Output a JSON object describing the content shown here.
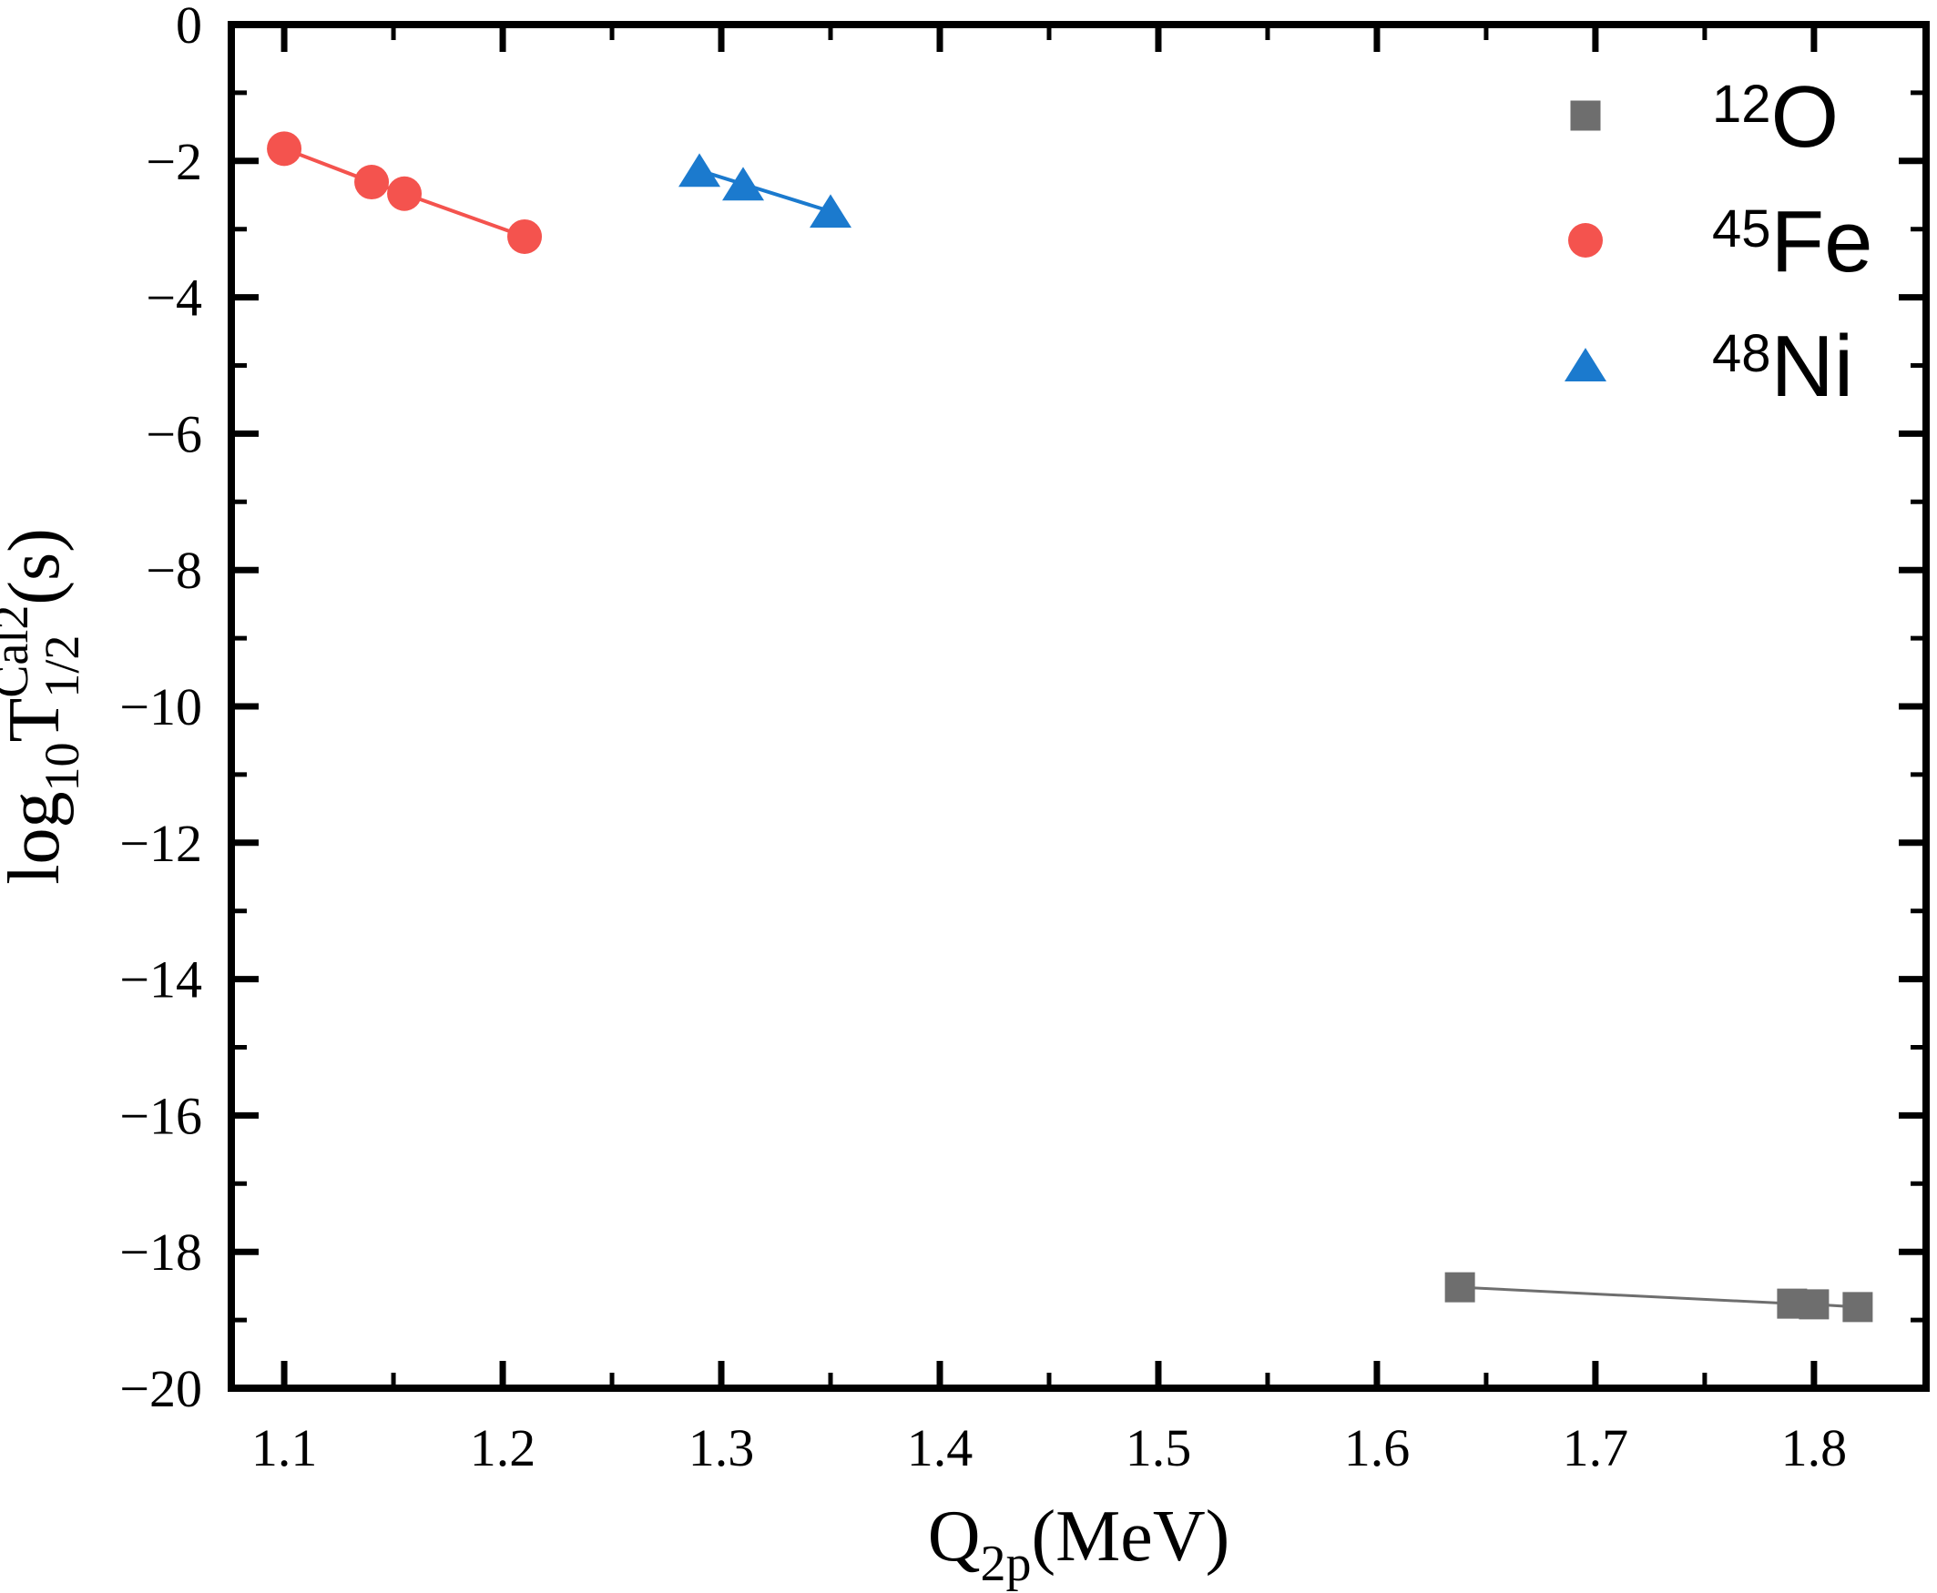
{
  "figure": {
    "background": "#ffffff",
    "axis_color": "#000000"
  },
  "chart_data": {
    "type": "line",
    "title": "",
    "xlabel_tokens": [
      {
        "t": "Q",
        "k": "b"
      },
      {
        "t": "2p",
        "k": "sub"
      },
      {
        "t": "(MeV)",
        "k": "b"
      }
    ],
    "ylabel_tokens": [
      {
        "t": "log",
        "k": "b"
      },
      {
        "t": "10",
        "k": "sub"
      },
      {
        "t": "T",
        "k": "b"
      },
      {
        "t": "Cal2",
        "k": "sup"
      },
      {
        "t": "1/2",
        "k": "substack"
      },
      {
        "t": "(s)",
        "k": "b"
      }
    ],
    "xlim": [
      1.0758,
      1.8513
    ],
    "ylim": [
      -20,
      0
    ],
    "grid": false,
    "legend_position": "top-right",
    "x_ticks": {
      "major": [
        {
          "v": 1.1,
          "label": "1.1"
        },
        {
          "v": 1.2,
          "label": "1.2"
        },
        {
          "v": 1.3,
          "label": "1.3"
        },
        {
          "v": 1.4,
          "label": "1.4"
        },
        {
          "v": 1.5,
          "label": "1.5"
        },
        {
          "v": 1.6,
          "label": "1.6"
        },
        {
          "v": 1.7,
          "label": "1.7"
        },
        {
          "v": 1.8,
          "label": "1.8"
        }
      ],
      "minor": [
        1.15,
        1.25,
        1.35,
        1.45,
        1.55,
        1.65,
        1.75
      ]
    },
    "y_ticks": {
      "major": [
        {
          "v": 0,
          "label": "0"
        },
        {
          "v": -2,
          "label": "−2"
        },
        {
          "v": -4,
          "label": "−4"
        },
        {
          "v": -6,
          "label": "−6"
        },
        {
          "v": -8,
          "label": "−8"
        },
        {
          "v": -10,
          "label": "−10"
        },
        {
          "v": -12,
          "label": "−12"
        },
        {
          "v": -14,
          "label": "−14"
        },
        {
          "v": -16,
          "label": "−16"
        },
        {
          "v": -18,
          "label": "−18"
        },
        {
          "v": -20,
          "label": "−20"
        }
      ],
      "minor": [
        -1,
        -3,
        -5,
        -7,
        -9,
        -11,
        -13,
        -15,
        -17,
        -19
      ]
    },
    "series": [
      {
        "mass": "12",
        "symbol": "O",
        "marker": "square",
        "color": "#6e6e6e",
        "line_width": 3,
        "marker_size": 33,
        "points": [
          [
            1.638,
            -18.52
          ],
          [
            1.79,
            -18.76
          ],
          [
            1.8,
            -18.77
          ],
          [
            1.82,
            -18.81
          ]
        ]
      },
      {
        "mass": "45",
        "symbol": "Fe",
        "marker": "circle",
        "color": "#f4534e",
        "line_width": 4,
        "marker_size": 38,
        "points": [
          [
            1.1,
            -1.82
          ],
          [
            1.14,
            -2.31
          ],
          [
            1.155,
            -2.48
          ],
          [
            1.21,
            -3.11
          ]
        ]
      },
      {
        "mass": "48",
        "symbol": "Ni",
        "marker": "triangle",
        "color": "#1b7ace",
        "line_width": 4,
        "marker_size": 46,
        "points": [
          [
            1.29,
            -2.14
          ],
          [
            1.31,
            -2.34
          ],
          [
            1.35,
            -2.74
          ]
        ]
      }
    ],
    "legend": {
      "entries": [
        {
          "mass": "12",
          "symbol": "O",
          "marker": "square",
          "color": "#6e6e6e"
        },
        {
          "mass": "45",
          "symbol": "Fe",
          "marker": "circle",
          "color": "#f4534e"
        },
        {
          "mass": "48",
          "symbol": "Ni",
          "marker": "triangle",
          "color": "#1b7ace"
        }
      ]
    }
  }
}
